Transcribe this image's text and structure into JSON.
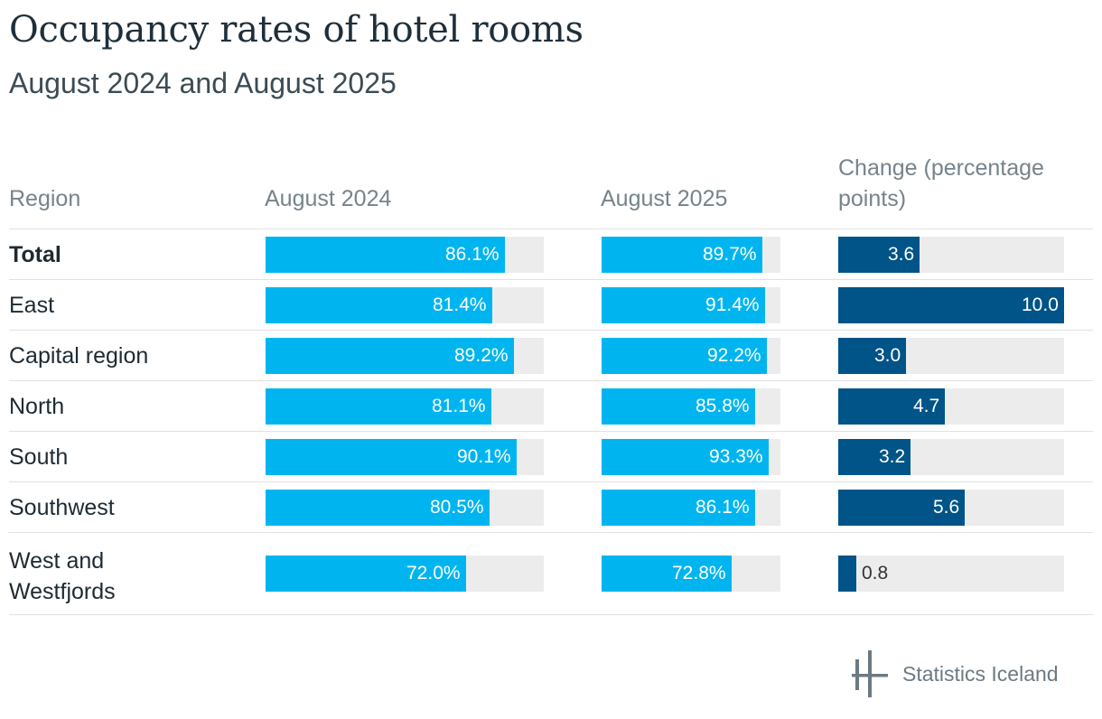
{
  "title": "Occupancy rates of hotel rooms",
  "subtitle": "August 2024 and August 2025",
  "headers": {
    "region": "Region",
    "aug2024": "August 2024",
    "aug2025": "August 2025",
    "change": "Change (percentage points)"
  },
  "logo_text": "Statistics Iceland",
  "colors": {
    "occupancy_bar": "#00b5ef",
    "change_bar": "#005487",
    "track": "#ececec"
  },
  "chart_data": {
    "type": "bar",
    "categories": [
      "Total",
      "East",
      "Capital region",
      "North",
      "South",
      "Southwest",
      "West and Westfjords"
    ],
    "series": [
      {
        "name": "August 2024",
        "values": [
          86.1,
          81.4,
          89.2,
          81.1,
          90.1,
          80.5,
          72.0
        ],
        "labels": [
          "86.1%",
          "81.4%",
          "89.2%",
          "81.1%",
          "90.1%",
          "80.5%",
          "72.0%"
        ],
        "max": 100
      },
      {
        "name": "August 2025",
        "values": [
          89.7,
          91.4,
          92.2,
          85.8,
          93.3,
          86.1,
          72.8
        ],
        "labels": [
          "89.7%",
          "91.4%",
          "92.2%",
          "85.8%",
          "93.3%",
          "86.1%",
          "72.8%"
        ],
        "max": 100
      },
      {
        "name": "Change (percentage points)",
        "values": [
          3.6,
          10.0,
          3.0,
          4.7,
          3.2,
          5.6,
          0.8
        ],
        "labels": [
          "3.6",
          "10.0",
          "3.0",
          "4.7",
          "3.2",
          "5.6",
          "0.8"
        ],
        "max": 10
      }
    ]
  }
}
